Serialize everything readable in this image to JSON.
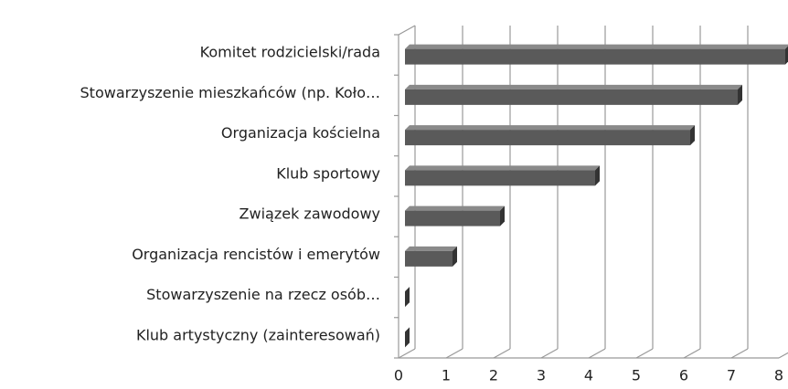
{
  "chart_data": {
    "type": "bar",
    "orientation": "horizontal",
    "categories": [
      "Komitet rodzicielski/rada",
      "Stowarzyszenie mieszkańców (np. Koło…",
      "Organizacja kościelna",
      "Klub sportowy",
      "Związek zawodowy",
      "Organizacja rencistów i emerytów",
      "Stowarzyszenie na rzecz osób…",
      "Klub artystyczny (zainteresowań)"
    ],
    "values": [
      8,
      7,
      6,
      4,
      2,
      1,
      0,
      0
    ],
    "color": "#5a5a5a",
    "xlim": [
      0,
      8
    ],
    "xticks": [
      0,
      1,
      2,
      3,
      4,
      5,
      6,
      7,
      8
    ],
    "grid": true
  }
}
